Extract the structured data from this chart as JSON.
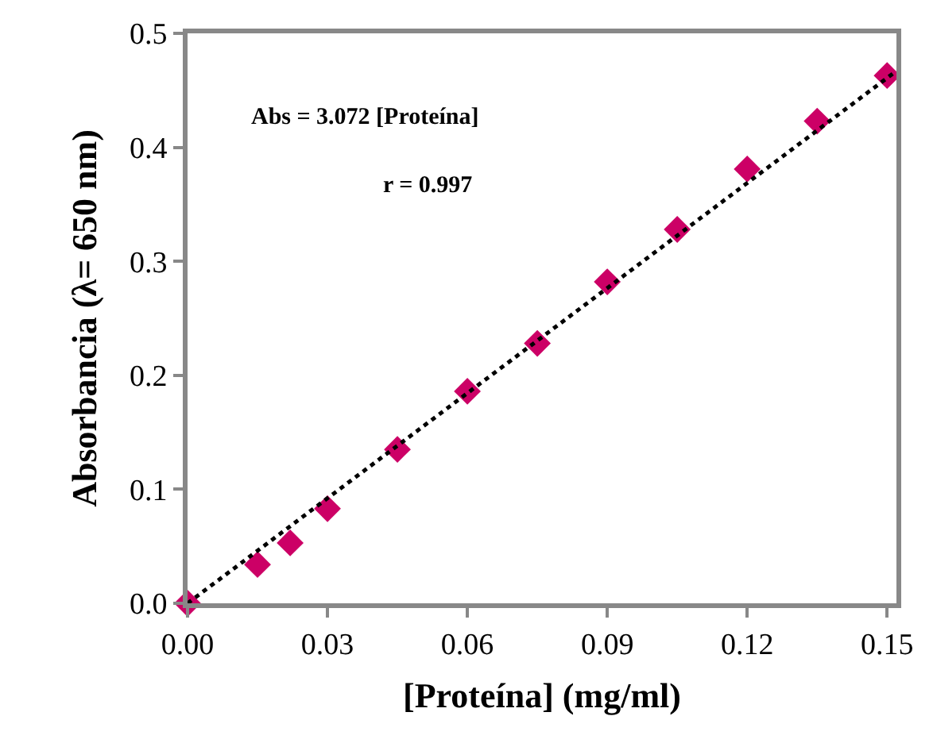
{
  "chart_data": {
    "type": "scatter",
    "xlabel": "[Proteína] (mg/ml)",
    "ylabel": "Absorbancia (λ= 650 nm)",
    "annotations": [
      "Abs = 3.072 [Proteína]",
      "r = 0.997"
    ],
    "x": [
      0,
      0.015,
      0.022,
      0.03,
      0.045,
      0.06,
      0.075,
      0.09,
      0.105,
      0.12,
      0.135,
      0.15
    ],
    "series": [
      {
        "color": "#cc0066",
        "marker": "diamond",
        "values": [
          0,
          0.034,
          0.053,
          0.083,
          0.135,
          0.186,
          0.228,
          0.282,
          0.328,
          0.381,
          0.423,
          0.463
        ]
      },
      {
        "type": "line",
        "color": "#000000",
        "line_style": "dotted",
        "marker": "none",
        "x": [
          0,
          0.152
        ],
        "values": [
          0,
          0.467
        ]
      }
    ],
    "xlim": [
      0,
      0.152
    ],
    "ylim": [
      0,
      0.5
    ],
    "xticks": [
      {
        "value": 0,
        "label": "0.00"
      },
      {
        "value": 0.03,
        "label": "0.03"
      },
      {
        "value": 0.06,
        "label": "0.06"
      },
      {
        "value": 0.09,
        "label": "0.09"
      },
      {
        "value": 0.12,
        "label": "0.12"
      },
      {
        "value": 0.15,
        "label": "0.15"
      }
    ],
    "yticks": [
      {
        "value": 0,
        "label": "0.0"
      },
      0.1,
      0.2,
      0.3,
      0.4,
      0.5
    ]
  }
}
